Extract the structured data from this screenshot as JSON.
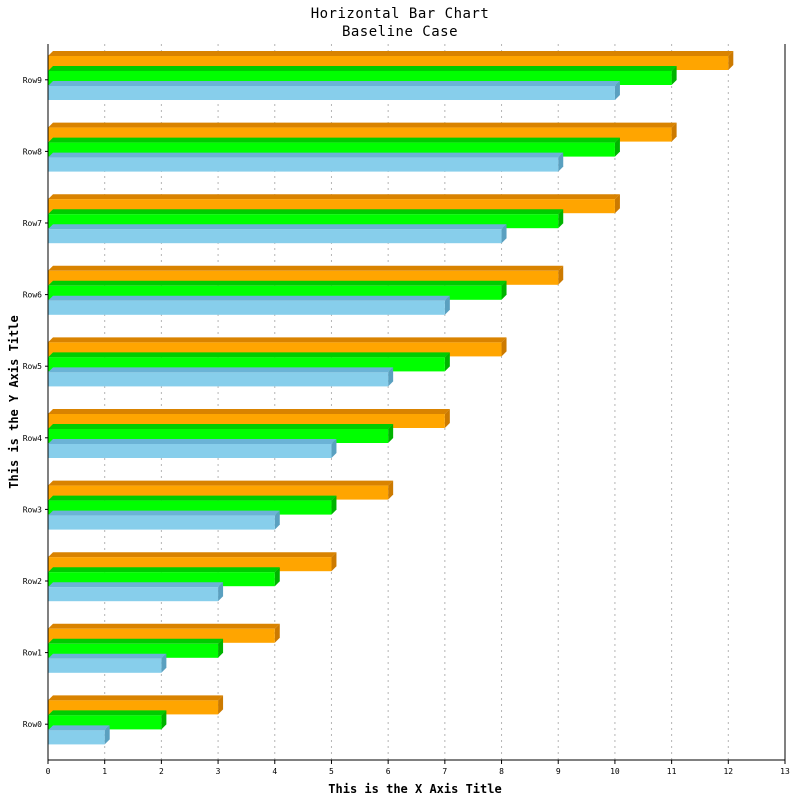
{
  "chart_data": {
    "type": "bar",
    "orientation": "horizontal",
    "title": "Horizontal Bar Chart",
    "subtitle": "Baseline Case",
    "xlabel": "This is the X Axis Title",
    "ylabel": "This is the Y Axis Title",
    "categories": [
      "Row0",
      "Row1",
      "Row2",
      "Row3",
      "Row4",
      "Row5",
      "Row6",
      "Row7",
      "Row8",
      "Row9"
    ],
    "series": [
      {
        "values": [
          1,
          2,
          3,
          4,
          5,
          6,
          7,
          8,
          9,
          10
        ],
        "color": "#87ceeb",
        "side_color": "#5aa0c0",
        "top_color": "#6bb3d6"
      },
      {
        "values": [
          2,
          3,
          4,
          5,
          6,
          7,
          8,
          9,
          10,
          11
        ],
        "color": "#00ff00",
        "side_color": "#00b300",
        "top_color": "#00cc00"
      },
      {
        "values": [
          3,
          4,
          5,
          6,
          7,
          8,
          9,
          10,
          11,
          12
        ],
        "color": "#ffa500",
        "side_color": "#cc7a00",
        "top_color": "#d98300"
      }
    ],
    "xlim": [
      0,
      13
    ],
    "xticks": [
      "0",
      "1",
      "2",
      "3",
      "4",
      "5",
      "6",
      "7",
      "8",
      "9",
      "10",
      "11",
      "12",
      "13"
    ],
    "grid": "vertical dotted",
    "legend": "none",
    "style": "3d"
  }
}
